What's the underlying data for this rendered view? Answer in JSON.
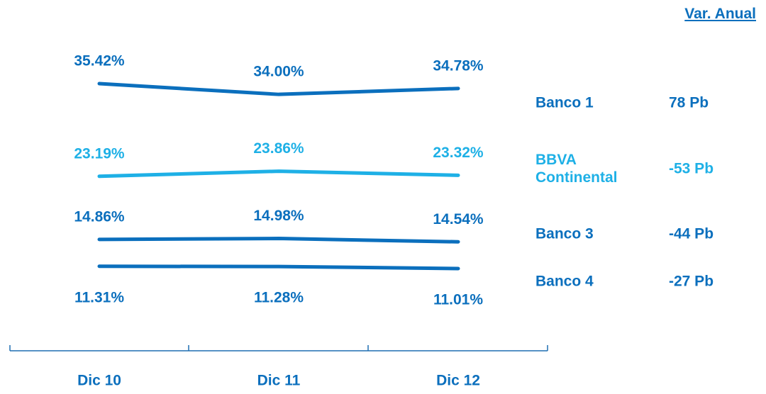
{
  "chart_data": {
    "type": "line",
    "categories": [
      "Dic 10",
      "Dic 11",
      "Dic 12"
    ],
    "change_header": "Var. Anual",
    "series": [
      {
        "name": "Banco 1",
        "color": "#0b6fbd",
        "values": [
          35.42,
          34.0,
          34.78
        ],
        "value_labels": [
          "35.42%",
          "34.00%",
          "34.78%"
        ],
        "annual_change": "78 Pb"
      },
      {
        "name": "BBVA Continental",
        "color": "#1eb0e6",
        "values": [
          23.19,
          23.86,
          23.32
        ],
        "value_labels": [
          "23.19%",
          "23.86%",
          "23.32%"
        ],
        "annual_change": "-53 Pb"
      },
      {
        "name": "Banco 3",
        "color": "#0b6fbd",
        "values": [
          14.86,
          14.98,
          14.54
        ],
        "value_labels": [
          "14.86%",
          "14.98%",
          "14.54%"
        ],
        "annual_change": "-44 Pb"
      },
      {
        "name": "Banco 4",
        "color": "#0b6fbd",
        "values": [
          11.31,
          11.28,
          11.01
        ],
        "value_labels": [
          "11.31%",
          "11.28%",
          "11.01%"
        ],
        "annual_change": "-27 Pb"
      }
    ]
  }
}
